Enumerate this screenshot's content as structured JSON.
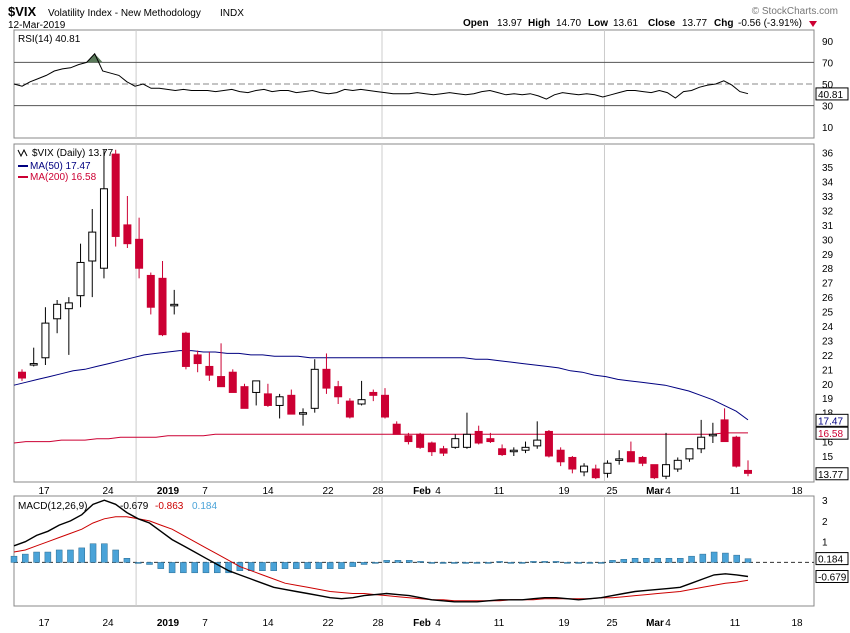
{
  "header": {
    "symbol": "$VIX",
    "name": "Volatility Index - New Methodology",
    "exchange": "INDX",
    "date": "12-Mar-2019",
    "watermark": "© StockCharts.com",
    "open_label": "Open",
    "open": "13.97",
    "high_label": "High",
    "high": "14.70",
    "low_label": "Low",
    "low": "13.61",
    "close_label": "Close",
    "close": "13.77",
    "chg_label": "Chg",
    "chg": "-0.56 (-3.91%)"
  },
  "colors": {
    "up": "#000000",
    "down": "#cc0033",
    "ma50": "#000080",
    "ma200": "#cc0033",
    "hist": "#4aa3d8",
    "rsi_fill": "#5a7a5a",
    "signal": "#cc0000"
  },
  "chart_data": [
    {
      "type": "line",
      "panel": "RSI",
      "legend": "RSI(14) 40.81",
      "y_ticks": [
        10,
        30,
        50,
        70,
        90
      ],
      "ylim": [
        0,
        100
      ],
      "reference_lines": [
        30,
        50,
        70
      ],
      "last_value_label": "40.81",
      "values": [
        50,
        48,
        52,
        55,
        58,
        62,
        64,
        65,
        68,
        70,
        78,
        62,
        60,
        58,
        52,
        48,
        50,
        46,
        46,
        45,
        44,
        45,
        44,
        44,
        44,
        43,
        44,
        45,
        43,
        42,
        44,
        45,
        43,
        44,
        44,
        42,
        43,
        44,
        42,
        41,
        42,
        45,
        44,
        45,
        44,
        43,
        42,
        41,
        41,
        41,
        42,
        41,
        40,
        41,
        42,
        41,
        40,
        41,
        43,
        44,
        42,
        40,
        41,
        40,
        41,
        39,
        36,
        40,
        42,
        41,
        40,
        41,
        40,
        38,
        40,
        42,
        44,
        44,
        43,
        42,
        44,
        42,
        37,
        43,
        44,
        47,
        49,
        50,
        53,
        49,
        43,
        41
      ]
    },
    {
      "type": "candlestick",
      "panel": "price",
      "legend": "$VIX (Daily) 13.77",
      "y_ticks": [
        15,
        16,
        17,
        18,
        19,
        20,
        21,
        22,
        23,
        24,
        25,
        26,
        27,
        28,
        29,
        30,
        31,
        32,
        33,
        34,
        35,
        36
      ],
      "ylim": [
        13.2,
        36.6
      ],
      "x_tick_labels": [
        "17",
        "24",
        "2019",
        "7",
        "14",
        "22",
        "28",
        "Feb",
        "4",
        "11",
        "19",
        "25",
        "Mar",
        "4",
        "11",
        "18"
      ],
      "candles": [
        {
          "o": 20.8,
          "h": 21.0,
          "l": 20.2,
          "c": 20.4
        },
        {
          "o": 21.4,
          "h": 22.5,
          "l": 21.2,
          "c": 21.4
        },
        {
          "o": 21.8,
          "h": 25.3,
          "l": 21.3,
          "c": 24.2
        },
        {
          "o": 24.5,
          "h": 25.8,
          "l": 23.5,
          "c": 25.5
        },
        {
          "o": 25.2,
          "h": 26.0,
          "l": 22.0,
          "c": 25.6
        },
        {
          "o": 26.1,
          "h": 29.7,
          "l": 25.3,
          "c": 28.4
        },
        {
          "o": 28.5,
          "h": 32.1,
          "l": 26.0,
          "c": 30.5
        },
        {
          "o": 28.0,
          "h": 36.2,
          "l": 27.3,
          "c": 33.5
        },
        {
          "o": 35.9,
          "h": 36.2,
          "l": 29.5,
          "c": 30.2
        },
        {
          "o": 31.0,
          "h": 33.0,
          "l": 29.4,
          "c": 29.7
        },
        {
          "o": 30.0,
          "h": 31.5,
          "l": 27.3,
          "c": 28.0
        },
        {
          "o": 27.5,
          "h": 27.7,
          "l": 24.8,
          "c": 25.3
        },
        {
          "o": 27.3,
          "h": 28.5,
          "l": 23.3,
          "c": 23.4
        },
        {
          "o": 25.5,
          "h": 26.5,
          "l": 24.8,
          "c": 25.5
        },
        {
          "o": 23.5,
          "h": 23.6,
          "l": 21.0,
          "c": 21.2
        },
        {
          "o": 22.0,
          "h": 22.3,
          "l": 20.8,
          "c": 21.4
        },
        {
          "o": 21.2,
          "h": 22.2,
          "l": 20.2,
          "c": 20.6
        },
        {
          "o": 20.5,
          "h": 22.8,
          "l": 20.0,
          "c": 19.8
        },
        {
          "o": 20.8,
          "h": 21.0,
          "l": 19.5,
          "c": 19.4
        },
        {
          "o": 19.8,
          "h": 20.0,
          "l": 18.3,
          "c": 18.3
        },
        {
          "o": 19.4,
          "h": 20.2,
          "l": 18.5,
          "c": 20.2
        },
        {
          "o": 19.3,
          "h": 20.0,
          "l": 18.4,
          "c": 18.5
        },
        {
          "o": 18.5,
          "h": 19.3,
          "l": 17.6,
          "c": 19.1
        },
        {
          "o": 19.2,
          "h": 19.6,
          "l": 17.9,
          "c": 17.9
        },
        {
          "o": 18.0,
          "h": 18.3,
          "l": 17.1,
          "c": 18.0
        },
        {
          "o": 18.3,
          "h": 21.7,
          "l": 18.0,
          "c": 21.0
        },
        {
          "o": 21.0,
          "h": 22.1,
          "l": 19.3,
          "c": 19.7
        },
        {
          "o": 19.8,
          "h": 20.2,
          "l": 18.6,
          "c": 19.1
        },
        {
          "o": 18.8,
          "h": 19.0,
          "l": 17.6,
          "c": 17.7
        },
        {
          "o": 18.6,
          "h": 20.2,
          "l": 18.5,
          "c": 18.9
        },
        {
          "o": 19.4,
          "h": 19.6,
          "l": 18.8,
          "c": 19.2
        },
        {
          "o": 19.2,
          "h": 19.7,
          "l": 17.6,
          "c": 17.7
        },
        {
          "o": 17.2,
          "h": 17.4,
          "l": 16.5,
          "c": 16.5
        },
        {
          "o": 16.4,
          "h": 16.6,
          "l": 15.8,
          "c": 16.0
        },
        {
          "o": 16.5,
          "h": 16.6,
          "l": 15.5,
          "c": 15.6
        },
        {
          "o": 15.9,
          "h": 16.0,
          "l": 15.0,
          "c": 15.3
        },
        {
          "o": 15.5,
          "h": 15.7,
          "l": 15.0,
          "c": 15.2
        },
        {
          "o": 15.6,
          "h": 16.5,
          "l": 15.5,
          "c": 16.2
        },
        {
          "o": 15.6,
          "h": 18.0,
          "l": 15.5,
          "c": 16.5
        },
        {
          "o": 16.7,
          "h": 17.1,
          "l": 15.8,
          "c": 15.9
        },
        {
          "o": 16.2,
          "h": 16.6,
          "l": 15.9,
          "c": 16.0
        },
        {
          "o": 15.5,
          "h": 15.8,
          "l": 15.0,
          "c": 15.1
        },
        {
          "o": 15.3,
          "h": 15.6,
          "l": 15.0,
          "c": 15.4
        },
        {
          "o": 15.4,
          "h": 16.0,
          "l": 15.2,
          "c": 15.6
        },
        {
          "o": 15.7,
          "h": 17.4,
          "l": 15.5,
          "c": 16.1
        },
        {
          "o": 16.7,
          "h": 16.8,
          "l": 14.9,
          "c": 15.0
        },
        {
          "o": 15.4,
          "h": 15.6,
          "l": 14.3,
          "c": 14.6
        },
        {
          "o": 14.9,
          "h": 15.0,
          "l": 13.8,
          "c": 14.1
        },
        {
          "o": 13.9,
          "h": 14.5,
          "l": 13.6,
          "c": 14.3
        },
        {
          "o": 14.1,
          "h": 14.4,
          "l": 13.4,
          "c": 13.5
        },
        {
          "o": 13.8,
          "h": 14.7,
          "l": 13.5,
          "c": 14.5
        },
        {
          "o": 14.8,
          "h": 15.4,
          "l": 14.4,
          "c": 14.8
        },
        {
          "o": 15.3,
          "h": 16.0,
          "l": 14.6,
          "c": 14.6
        },
        {
          "o": 14.9,
          "h": 15.0,
          "l": 14.3,
          "c": 14.5
        },
        {
          "o": 14.4,
          "h": 14.4,
          "l": 13.4,
          "c": 13.5
        },
        {
          "o": 13.6,
          "h": 16.6,
          "l": 13.4,
          "c": 14.4
        },
        {
          "o": 14.1,
          "h": 14.9,
          "l": 13.9,
          "c": 14.7
        },
        {
          "o": 14.8,
          "h": 15.4,
          "l": 14.6,
          "c": 15.5
        },
        {
          "o": 15.5,
          "h": 17.5,
          "l": 15.2,
          "c": 16.3
        },
        {
          "o": 16.4,
          "h": 17.3,
          "l": 15.9,
          "c": 16.5
        },
        {
          "o": 17.5,
          "h": 18.3,
          "l": 16.0,
          "c": 16.0
        },
        {
          "o": 16.3,
          "h": 16.4,
          "l": 14.2,
          "c": 14.3
        },
        {
          "o": 14.0,
          "h": 14.7,
          "l": 13.6,
          "c": 13.8
        }
      ],
      "ma50": {
        "legend": "MA(50) 17.47",
        "value": "17.47",
        "values": [
          19.9,
          20.1,
          20.3,
          20.5,
          20.7,
          20.9,
          21.0,
          21.2,
          21.4,
          21.6,
          21.8,
          22.0,
          22.1,
          22.2,
          22.3,
          22.3,
          22.2,
          22.2,
          22.1,
          22.1,
          22.0,
          22.0,
          21.9,
          21.9,
          21.9,
          21.8,
          21.8,
          21.8,
          21.8,
          21.8,
          21.8,
          21.8,
          21.8,
          21.8,
          21.8,
          21.8,
          21.8,
          21.8,
          21.8,
          21.7,
          21.7,
          21.6,
          21.5,
          21.4,
          21.3,
          21.2,
          21.1,
          20.9,
          20.8,
          20.6,
          20.5,
          20.3,
          20.2,
          20.1,
          20.0,
          19.9,
          19.7,
          19.5,
          19.2,
          18.9,
          18.5,
          18.1,
          17.5
        ]
      },
      "ma200": {
        "legend": "MA(200) 16.58",
        "value": "16.58",
        "values": [
          15.9,
          16.0,
          16.0,
          16.0,
          16.1,
          16.1,
          16.1,
          16.2,
          16.2,
          16.3,
          16.3,
          16.3,
          16.3,
          16.4,
          16.4,
          16.4,
          16.4,
          16.5,
          16.5,
          16.5,
          16.5,
          16.5,
          16.5,
          16.5,
          16.5,
          16.5,
          16.5,
          16.5,
          16.5,
          16.5,
          16.5,
          16.5,
          16.5,
          16.5,
          16.5,
          16.5,
          16.5,
          16.5,
          16.5,
          16.5,
          16.5,
          16.5,
          16.5,
          16.5,
          16.5,
          16.5,
          16.5,
          16.5,
          16.5,
          16.5,
          16.5,
          16.5,
          16.5,
          16.5,
          16.5,
          16.5,
          16.5,
          16.5,
          16.5,
          16.5,
          16.6,
          16.6,
          16.6
        ]
      },
      "last_label": "13.77"
    },
    {
      "type": "line",
      "panel": "MACD",
      "legend_prefix": "MACD(12,26,9)",
      "macd_value": "-0.679",
      "signal_value": "-0.863",
      "hist_value": "0.184",
      "y_ticks": [
        1,
        2,
        3
      ],
      "ylim": [
        -2.1,
        3.2
      ],
      "tick_0": "0.184",
      "tick_1": "-0.679",
      "macd": [
        0.8,
        1.0,
        1.3,
        1.5,
        1.8,
        2.0,
        2.3,
        2.8,
        3.0,
        2.8,
        2.4,
        2.1,
        1.9,
        1.5,
        1.1,
        0.8,
        0.5,
        0.2,
        -0.1,
        -0.4,
        -0.6,
        -0.8,
        -1.0,
        -1.2,
        -1.3,
        -1.4,
        -1.5,
        -1.6,
        -1.7,
        -1.75,
        -1.7,
        -1.6,
        -1.55,
        -1.5,
        -1.55,
        -1.6,
        -1.7,
        -1.8,
        -1.85,
        -1.9,
        -1.9,
        -1.9,
        -1.85,
        -1.8,
        -1.8,
        -1.8,
        -1.75,
        -1.7,
        -1.7,
        -1.75,
        -1.8,
        -1.75,
        -1.7,
        -1.6,
        -1.5,
        -1.4,
        -1.35,
        -1.3,
        -1.25,
        -1.2,
        -1.0,
        -0.8,
        -0.6,
        -0.55,
        -0.6,
        -0.68
      ],
      "signal": [
        0.5,
        0.6,
        0.8,
        1.0,
        1.2,
        1.4,
        1.6,
        1.9,
        2.1,
        2.2,
        2.2,
        2.1,
        2.0,
        1.8,
        1.6,
        1.3,
        1.0,
        0.7,
        0.4,
        0.1,
        -0.2,
        -0.4,
        -0.6,
        -0.8,
        -1.0,
        -1.1,
        -1.2,
        -1.3,
        -1.4,
        -1.45,
        -1.5,
        -1.5,
        -1.55,
        -1.6,
        -1.65,
        -1.7,
        -1.75,
        -1.8,
        -1.8,
        -1.85,
        -1.85,
        -1.85,
        -1.85,
        -1.85,
        -1.8,
        -1.8,
        -1.8,
        -1.75,
        -1.75,
        -1.75,
        -1.75,
        -1.75,
        -1.7,
        -1.7,
        -1.65,
        -1.6,
        -1.55,
        -1.5,
        -1.45,
        -1.4,
        -1.3,
        -1.2,
        -1.1,
        -1.0,
        -0.95,
        -0.86
      ],
      "hist": [
        0.3,
        0.4,
        0.5,
        0.5,
        0.6,
        0.6,
        0.7,
        0.9,
        0.9,
        0.6,
        0.2,
        0.0,
        -0.1,
        -0.3,
        -0.5,
        -0.5,
        -0.5,
        -0.5,
        -0.5,
        -0.5,
        -0.4,
        -0.4,
        -0.4,
        -0.4,
        -0.3,
        -0.3,
        -0.3,
        -0.3,
        -0.3,
        -0.3,
        -0.2,
        -0.1,
        0.0,
        0.1,
        0.1,
        0.1,
        0.05,
        0.0,
        -0.05,
        -0.05,
        -0.05,
        -0.05,
        0.0,
        0.05,
        0.0,
        0.0,
        0.05,
        0.05,
        0.05,
        0.0,
        -0.05,
        0.0,
        0.0,
        0.1,
        0.15,
        0.2,
        0.2,
        0.2,
        0.2,
        0.2,
        0.3,
        0.4,
        0.5,
        0.45,
        0.35,
        0.18
      ]
    }
  ]
}
